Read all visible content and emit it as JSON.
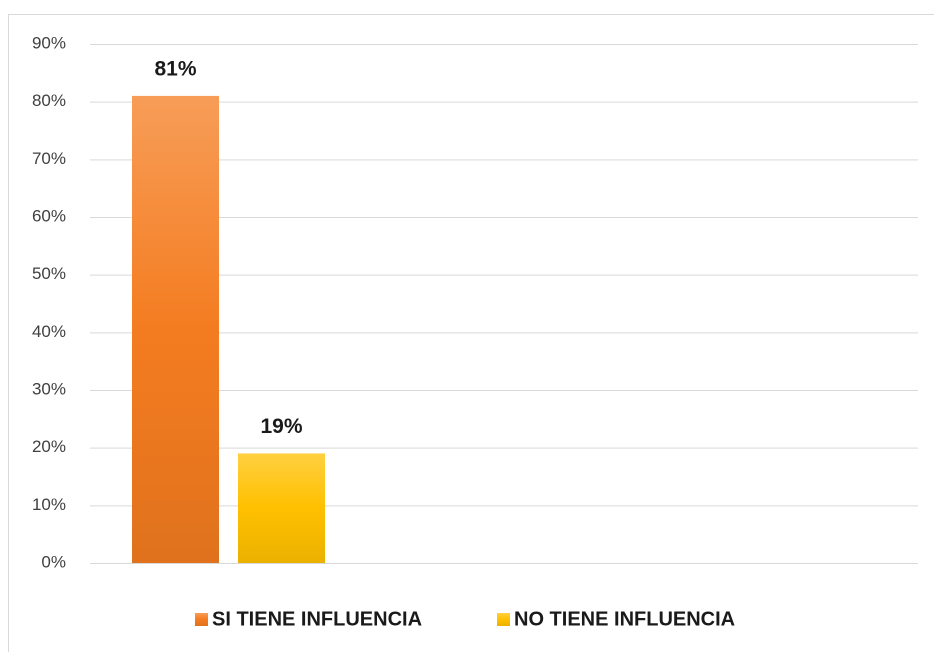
{
  "chart_data": {
    "type": "bar",
    "categories": [
      null
    ],
    "series": [
      {
        "name": "SI TIENE INFLUENCIA",
        "color": "#f47c20",
        "values": [
          81
        ],
        "value_labels": [
          "81%"
        ]
      },
      {
        "name": "NO TIENE INFLUENCIA",
        "color": "#ffc000",
        "values": [
          19
        ],
        "value_labels": [
          "19%"
        ]
      }
    ],
    "ylim": [
      0,
      90
    ],
    "yticks": [
      {
        "value": 0,
        "label": "0%"
      },
      {
        "value": 10,
        "label": "10%"
      },
      {
        "value": 20,
        "label": "20%"
      },
      {
        "value": 30,
        "label": "30%"
      },
      {
        "value": 40,
        "label": "40%"
      },
      {
        "value": 50,
        "label": "50%"
      },
      {
        "value": 60,
        "label": "60%"
      },
      {
        "value": 70,
        "label": "70%"
      },
      {
        "value": 80,
        "label": "80%"
      },
      {
        "value": 90,
        "label": "90%"
      }
    ],
    "grid": true,
    "legend": "bottom"
  }
}
